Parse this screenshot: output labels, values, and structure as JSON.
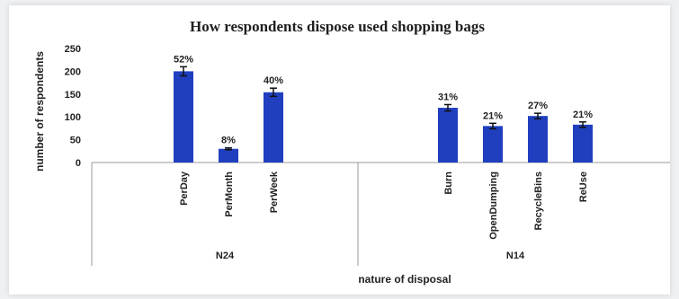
{
  "chart_data": {
    "type": "bar",
    "title": "How respondents dispose used shopping bags",
    "xlabel": "nature of disposal",
    "ylabel": "number of respondents",
    "ylim": [
      0,
      250
    ],
    "yticks": [
      0,
      50,
      100,
      150,
      200,
      250
    ],
    "grid": false,
    "legend": "none",
    "bar_color": "#1f3fbf",
    "groups": [
      {
        "name": "N24",
        "categories": [
          "PerDay",
          "PerMonth",
          "PerWeek"
        ],
        "values": [
          200,
          30,
          154
        ],
        "errors": [
          10,
          2,
          9
        ],
        "labels": [
          "52%",
          "8%",
          "40%"
        ]
      },
      {
        "name": "N14",
        "categories": [
          "Burn",
          "OpenDumping",
          "RecycleBins",
          "ReUse"
        ],
        "values": [
          120,
          80,
          102,
          83
        ],
        "errors": [
          7,
          6,
          6,
          6
        ],
        "labels": [
          "31%",
          "21%",
          "27%",
          "21%"
        ]
      }
    ]
  }
}
